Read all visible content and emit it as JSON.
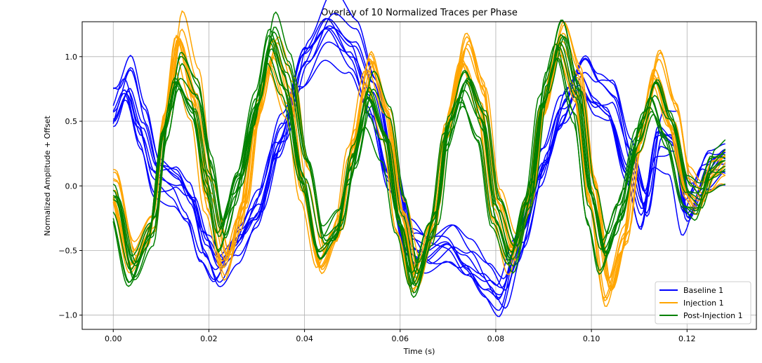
{
  "chart_data": {
    "type": "line",
    "title": "Overlay of 10 Normalized Traces per Phase",
    "xlabel": "Time (s)",
    "ylabel": "Normalized Amplitude + Offset",
    "xlim": [
      -0.0065,
      0.1345
    ],
    "ylim": [
      -1.11,
      1.27
    ],
    "x_ticks": [
      0,
      0.02,
      0.04,
      0.06,
      0.08,
      0.1,
      0.12
    ],
    "x_tick_labels": [
      "0.00",
      "0.02",
      "0.04",
      "0.06",
      "0.08",
      "0.10",
      "0.12"
    ],
    "y_ticks": [
      -1.0,
      -0.5,
      0.0,
      0.5,
      1.0
    ],
    "y_tick_labels": [
      "−1.0",
      "−0.5",
      "0.0",
      "0.5",
      "1.0"
    ],
    "grid": true,
    "legend_position": "bottom-right",
    "traces_per_phase": 10,
    "trace_offset_step": 0.02,
    "series": [
      {
        "name": "Baseline 1",
        "color": "#0000ff",
        "points": [
          [
            0.0,
            0.45
          ],
          [
            0.003,
            0.68
          ],
          [
            0.006,
            0.35
          ],
          [
            0.009,
            0.0
          ],
          [
            0.013,
            -0.05
          ],
          [
            0.016,
            -0.2
          ],
          [
            0.019,
            -0.55
          ],
          [
            0.022,
            -0.75
          ],
          [
            0.026,
            -0.55
          ],
          [
            0.03,
            -0.3
          ],
          [
            0.035,
            0.3
          ],
          [
            0.04,
            0.9
          ],
          [
            0.045,
            1.15
          ],
          [
            0.05,
            0.95
          ],
          [
            0.054,
            0.6
          ],
          [
            0.058,
            0.05
          ],
          [
            0.062,
            -0.5
          ],
          [
            0.066,
            -0.6
          ],
          [
            0.07,
            -0.55
          ],
          [
            0.074,
            -0.7
          ],
          [
            0.078,
            -0.85
          ],
          [
            0.081,
            -0.95
          ],
          [
            0.085,
            -0.5
          ],
          [
            0.09,
            0.1
          ],
          [
            0.094,
            0.5
          ],
          [
            0.098,
            0.75
          ],
          [
            0.101,
            0.6
          ],
          [
            0.104,
            0.55
          ],
          [
            0.108,
            0.1
          ],
          [
            0.111,
            -0.25
          ],
          [
            0.114,
            0.3
          ],
          [
            0.117,
            0.25
          ],
          [
            0.12,
            -0.3
          ],
          [
            0.124,
            0.0
          ],
          [
            0.128,
            0.1
          ]
        ],
        "variation": 0.14
      },
      {
        "name": "Injection 1",
        "color": "#ffa500",
        "points": [
          [
            0.0,
            -0.1
          ],
          [
            0.004,
            -0.65
          ],
          [
            0.008,
            -0.4
          ],
          [
            0.011,
            0.45
          ],
          [
            0.0135,
            1.05
          ],
          [
            0.017,
            0.6
          ],
          [
            0.02,
            -0.2
          ],
          [
            0.0235,
            -0.7
          ],
          [
            0.027,
            -0.3
          ],
          [
            0.03,
            0.45
          ],
          [
            0.0335,
            0.95
          ],
          [
            0.037,
            0.6
          ],
          [
            0.04,
            -0.1
          ],
          [
            0.0435,
            -0.7
          ],
          [
            0.047,
            -0.45
          ],
          [
            0.05,
            0.2
          ],
          [
            0.0535,
            0.85
          ],
          [
            0.057,
            0.45
          ],
          [
            0.06,
            -0.3
          ],
          [
            0.0635,
            -0.8
          ],
          [
            0.067,
            -0.4
          ],
          [
            0.07,
            0.4
          ],
          [
            0.0735,
            0.95
          ],
          [
            0.077,
            0.6
          ],
          [
            0.08,
            -0.2
          ],
          [
            0.0835,
            -0.6
          ],
          [
            0.087,
            -0.2
          ],
          [
            0.09,
            0.5
          ],
          [
            0.0935,
            1.0
          ],
          [
            0.097,
            0.7
          ],
          [
            0.1,
            -0.1
          ],
          [
            0.1035,
            -0.9
          ],
          [
            0.107,
            -0.5
          ],
          [
            0.11,
            0.25
          ],
          [
            0.1135,
            0.8
          ],
          [
            0.117,
            0.4
          ],
          [
            0.12,
            -0.1
          ],
          [
            0.1225,
            -0.2
          ],
          [
            0.125,
            0.0
          ],
          [
            0.128,
            0.1
          ]
        ],
        "variation": 0.1
      },
      {
        "name": "Post-Injection 1",
        "color": "#008000",
        "points": [
          [
            0.0,
            -0.2
          ],
          [
            0.004,
            -0.75
          ],
          [
            0.008,
            -0.45
          ],
          [
            0.011,
            0.35
          ],
          [
            0.0135,
            0.75
          ],
          [
            0.017,
            0.55
          ],
          [
            0.02,
            0.0
          ],
          [
            0.0225,
            -0.45
          ],
          [
            0.026,
            -0.05
          ],
          [
            0.03,
            0.55
          ],
          [
            0.033,
            1.05
          ],
          [
            0.036,
            0.75
          ],
          [
            0.04,
            0.0
          ],
          [
            0.0435,
            -0.55
          ],
          [
            0.047,
            -0.4
          ],
          [
            0.05,
            0.1
          ],
          [
            0.0535,
            0.6
          ],
          [
            0.057,
            0.3
          ],
          [
            0.06,
            -0.35
          ],
          [
            0.063,
            -0.85
          ],
          [
            0.067,
            -0.4
          ],
          [
            0.07,
            0.35
          ],
          [
            0.0735,
            0.7
          ],
          [
            0.077,
            0.4
          ],
          [
            0.08,
            -0.3
          ],
          [
            0.0835,
            -0.65
          ],
          [
            0.087,
            -0.2
          ],
          [
            0.09,
            0.6
          ],
          [
            0.0935,
            1.05
          ],
          [
            0.097,
            0.6
          ],
          [
            0.1,
            -0.2
          ],
          [
            0.1025,
            -0.6
          ],
          [
            0.106,
            -0.3
          ],
          [
            0.11,
            0.3
          ],
          [
            0.113,
            0.6
          ],
          [
            0.116,
            0.35
          ],
          [
            0.12,
            -0.15
          ],
          [
            0.1225,
            -0.2
          ],
          [
            0.125,
            0.05
          ],
          [
            0.128,
            0.1
          ]
        ],
        "variation": 0.12
      }
    ]
  }
}
